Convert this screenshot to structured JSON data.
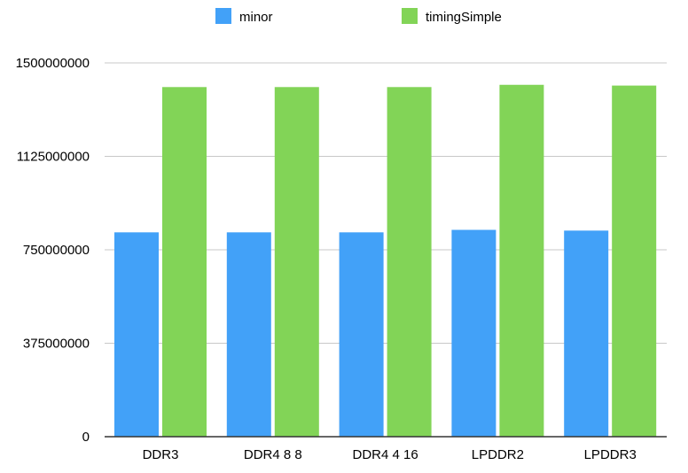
{
  "chart_data": {
    "type": "bar",
    "categories": [
      "DDR3",
      "DDR4  8 8",
      "DDR4  4 16",
      "LPDDR2",
      "LPDDR3"
    ],
    "series": [
      {
        "name": "minor",
        "color": "#42A1F8",
        "values": [
          820000000,
          820000000,
          820000000,
          830000000,
          827000000
        ]
      },
      {
        "name": "timingSimple",
        "color": "#82D457",
        "values": [
          1403000000,
          1403000000,
          1403000000,
          1412000000,
          1409000000
        ]
      }
    ],
    "yticks": [
      "0",
      "375000000",
      "750000000",
      "1125000000",
      "1500000000"
    ],
    "ylim": [
      0,
      1500000000
    ],
    "grid": true,
    "legend": "top"
  }
}
